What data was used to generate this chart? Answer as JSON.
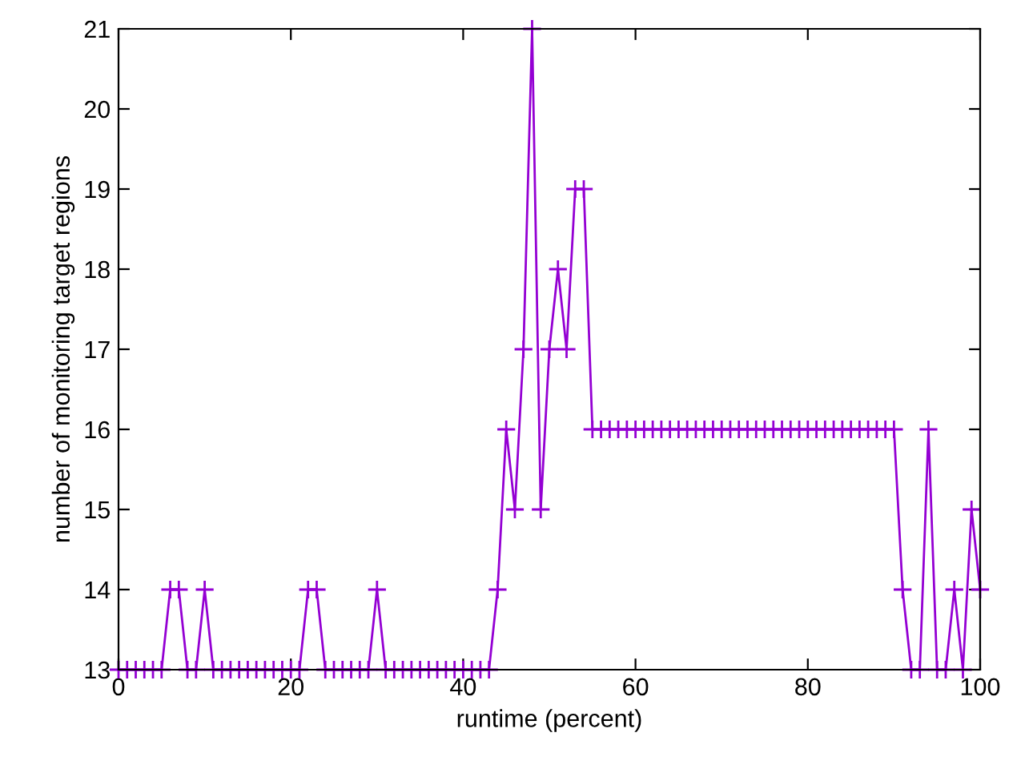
{
  "chart_data": {
    "type": "line",
    "xlabel": "runtime (percent)",
    "ylabel": "number of monitoring target regions",
    "x": [
      0,
      1,
      2,
      3,
      4,
      5,
      6,
      7,
      8,
      9,
      10,
      11,
      12,
      13,
      14,
      15,
      16,
      17,
      18,
      19,
      20,
      21,
      22,
      23,
      24,
      25,
      26,
      27,
      28,
      29,
      30,
      31,
      32,
      33,
      34,
      35,
      36,
      37,
      38,
      39,
      40,
      41,
      42,
      43,
      44,
      45,
      46,
      47,
      48,
      49,
      50,
      51,
      52,
      53,
      54,
      55,
      56,
      57,
      58,
      59,
      60,
      61,
      62,
      63,
      64,
      65,
      66,
      67,
      68,
      69,
      70,
      71,
      72,
      73,
      74,
      75,
      76,
      77,
      78,
      79,
      80,
      81,
      82,
      83,
      84,
      85,
      86,
      87,
      88,
      89,
      90,
      91,
      92,
      93,
      94,
      95,
      96,
      97,
      98,
      99,
      100
    ],
    "series": [
      {
        "color": "#9400d3",
        "values": [
          13,
          13,
          13,
          13,
          13,
          13,
          14,
          14,
          13,
          13,
          14,
          13,
          13,
          13,
          13,
          13,
          13,
          13,
          13,
          13,
          13,
          13,
          14,
          14,
          13,
          13,
          13,
          13,
          13,
          13,
          14,
          13,
          13,
          13,
          13,
          13,
          13,
          13,
          13,
          13,
          13,
          13,
          13,
          13,
          14,
          16,
          15,
          17,
          21,
          15,
          17,
          18,
          17,
          19,
          19,
          16,
          16,
          16,
          16,
          16,
          16,
          16,
          16,
          16,
          16,
          16,
          16,
          16,
          16,
          16,
          16,
          16,
          16,
          16,
          16,
          16,
          16,
          16,
          16,
          16,
          16,
          16,
          16,
          16,
          16,
          16,
          16,
          16,
          16,
          16,
          16,
          14,
          13,
          13,
          16,
          13,
          13,
          14,
          13,
          15,
          14
        ]
      }
    ],
    "xlim": [
      0,
      100
    ],
    "ylim": [
      13,
      21
    ],
    "xticks": [
      0,
      20,
      40,
      60,
      80,
      100
    ],
    "yticks": [
      13,
      14,
      15,
      16,
      17,
      18,
      19,
      20,
      21
    ],
    "marker": "cross",
    "line_style": "solid",
    "grid": false
  }
}
